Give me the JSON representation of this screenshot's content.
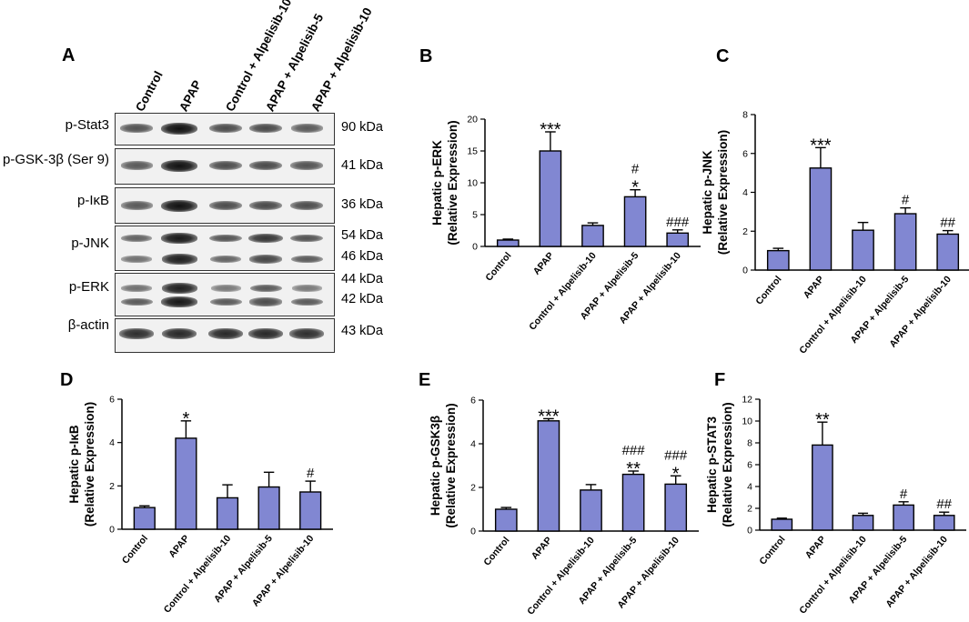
{
  "panel_a": {
    "letter": "A",
    "lanes": [
      "Control",
      "APAP",
      "Control + Alpelisib-10",
      "APAP + Alpelisib-5",
      "APAP + Alpelisib-10"
    ],
    "blots": [
      {
        "protein": "p-Stat3",
        "kda": [
          "90 kDa"
        ],
        "intensity": [
          [
            0.55,
            1.0,
            0.6,
            0.62,
            0.5
          ]
        ]
      },
      {
        "protein": "p-GSK-3β (Ser 9)",
        "kda": [
          "41 kDa"
        ],
        "intensity": [
          [
            0.5,
            1.0,
            0.6,
            0.62,
            0.55
          ]
        ]
      },
      {
        "protein": "p-IκB",
        "kda": [
          "36 kDa"
        ],
        "intensity": [
          [
            0.5,
            1.0,
            0.6,
            0.62,
            0.6
          ]
        ]
      },
      {
        "protein": "p-JNK",
        "kda": [
          "54 kDa",
          "46 kDa"
        ],
        "intensity": [
          [
            0.45,
            0.95,
            0.55,
            0.75,
            0.55
          ],
          [
            0.35,
            0.9,
            0.45,
            0.65,
            0.5
          ]
        ]
      },
      {
        "protein": "p-ERK",
        "kda": [
          "44 kDa",
          "42 kDa"
        ],
        "intensity": [
          [
            0.35,
            0.9,
            0.3,
            0.5,
            0.3
          ],
          [
            0.5,
            0.95,
            0.5,
            0.6,
            0.5
          ]
        ]
      },
      {
        "protein": "β-actin",
        "kda": [
          "43 kDa"
        ],
        "intensity": [
          [
            0.8,
            0.85,
            0.85,
            0.85,
            0.8
          ]
        ]
      }
    ]
  },
  "chart_data": [
    {
      "panel": "B",
      "type": "bar",
      "ylabel": [
        "Hepatic p-ERK",
        "(Relative Expression)"
      ],
      "categories": [
        "Control",
        "APAP",
        "Control + Alpelisib-10",
        "APAP + Alpelisib-5",
        "APAP + Alpelisib-10"
      ],
      "values": [
        1.0,
        15.0,
        3.3,
        7.8,
        2.1
      ],
      "errors": [
        0.15,
        3.0,
        0.4,
        1.1,
        0.5
      ],
      "ylim": [
        0,
        20
      ],
      "yticks": [
        "0",
        "5",
        "10",
        "15",
        "20"
      ],
      "annotations": [
        "",
        "***",
        "",
        "#\n*",
        "###"
      ],
      "bar_color": "#8187d2"
    },
    {
      "panel": "C",
      "type": "bar",
      "ylabel": [
        "Hepatic p-JNK",
        "(Relative Expression)"
      ],
      "categories": [
        "Control",
        "APAP",
        "Control + Alpelisib-10",
        "APAP + Alpelisib-5",
        "APAP + Alpelisib-10"
      ],
      "values": [
        1.0,
        5.25,
        2.05,
        2.9,
        1.85
      ],
      "errors": [
        0.12,
        1.05,
        0.4,
        0.3,
        0.18
      ],
      "ylim": [
        0,
        8
      ],
      "yticks": [
        "0",
        "2",
        "4",
        "6",
        "8"
      ],
      "annotations": [
        "",
        "***",
        "",
        "#",
        "##"
      ],
      "bar_color": "#8187d2"
    },
    {
      "panel": "D",
      "type": "bar",
      "ylabel": [
        "Hepatic p-IκB",
        "(Relative Expression)"
      ],
      "categories": [
        "Control",
        "APAP",
        "Control + Alpelisib-10",
        "APAP + Alpelisib-5",
        "APAP + Alpelisib-10"
      ],
      "values": [
        1.0,
        4.2,
        1.45,
        1.95,
        1.72
      ],
      "errors": [
        0.08,
        0.8,
        0.6,
        0.68,
        0.5
      ],
      "ylim": [
        0,
        6
      ],
      "yticks": [
        "0",
        "2",
        "4",
        "6"
      ],
      "annotations": [
        "",
        "*",
        "",
        "",
        "#"
      ],
      "bar_color": "#8187d2"
    },
    {
      "panel": "E",
      "type": "bar",
      "ylabel": [
        "Hepatic p-GSK3β",
        "(Relative Expression)"
      ],
      "categories": [
        "Control",
        "APAP",
        "Control + Alpelisib-10",
        "APAP + Alpelisib-5",
        "APAP + Alpelisib-10"
      ],
      "values": [
        1.0,
        5.05,
        1.88,
        2.6,
        2.15
      ],
      "errors": [
        0.08,
        0.1,
        0.25,
        0.15,
        0.38
      ],
      "ylim": [
        0,
        6
      ],
      "yticks": [
        "0",
        "2",
        "4",
        "6"
      ],
      "annotations": [
        "",
        "***",
        "",
        "###\n**",
        "###\n*"
      ],
      "bar_color": "#8187d2"
    },
    {
      "panel": "F",
      "type": "bar",
      "ylabel": [
        "Hepatic p-STAT3",
        "(Relative Expression)"
      ],
      "categories": [
        "Control",
        "APAP",
        "Control + Alpelisib-10",
        "APAP + Alpelisib-5",
        "APAP + Alpelisib-10"
      ],
      "values": [
        1.0,
        7.8,
        1.35,
        2.3,
        1.35
      ],
      "errors": [
        0.1,
        2.1,
        0.2,
        0.3,
        0.3
      ],
      "ylim": [
        0,
        12
      ],
      "yticks": [
        "0",
        "2",
        "4",
        "6",
        "8",
        "10",
        "12"
      ],
      "annotations": [
        "",
        "**",
        "",
        "#",
        "##"
      ],
      "bar_color": "#8187d2"
    }
  ]
}
